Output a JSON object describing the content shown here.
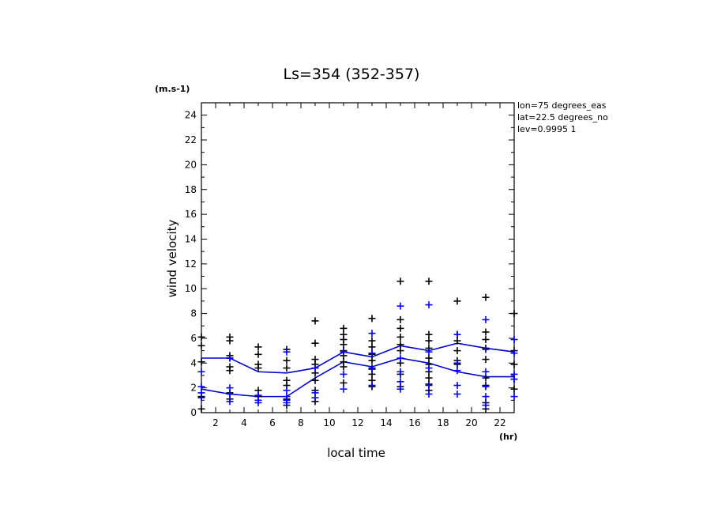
{
  "chart_data": {
    "type": "scatter",
    "title": "Ls=354 (352-357)",
    "xlabel": "local time",
    "ylabel": "wind velocity",
    "x_unit": "(hr)",
    "y_unit": "(m.s-1)",
    "xlim": [
      1,
      23
    ],
    "ylim": [
      0,
      25
    ],
    "x_ticks": [
      2,
      4,
      6,
      8,
      10,
      12,
      14,
      16,
      18,
      20,
      22
    ],
    "y_ticks": [
      0,
      2,
      4,
      6,
      8,
      10,
      12,
      14,
      16,
      18,
      20,
      22,
      24
    ],
    "grid": false,
    "info_lines": [
      "lon=75 degrees_eas",
      "lat=22.5 degrees_no",
      "lev=0.9995 1"
    ],
    "colors": {
      "black_points": "#000000",
      "blue_points": "#0000ff",
      "lines": "#0000cc"
    },
    "series": [
      {
        "marker": "plus",
        "color": "#000000",
        "points": [
          [
            1,
            0.3
          ],
          [
            1,
            1.3
          ],
          [
            1,
            4.1
          ],
          [
            1,
            5.4
          ],
          [
            1,
            6.1
          ],
          [
            3,
            1.1
          ],
          [
            3,
            1.6
          ],
          [
            3,
            3.4
          ],
          [
            3,
            3.7
          ],
          [
            3,
            4.4
          ],
          [
            3,
            4.6
          ],
          [
            3,
            5.8
          ],
          [
            3,
            6.1
          ],
          [
            5,
            1.3
          ],
          [
            5,
            1.8
          ],
          [
            5,
            3.6
          ],
          [
            5,
            3.9
          ],
          [
            5,
            4.7
          ],
          [
            5,
            5.3
          ],
          [
            7,
            0.6
          ],
          [
            7,
            1.1
          ],
          [
            7,
            2.2
          ],
          [
            7,
            2.6
          ],
          [
            7,
            3.6
          ],
          [
            7,
            4.2
          ],
          [
            7,
            5.1
          ],
          [
            9,
            0.9
          ],
          [
            9,
            1.8
          ],
          [
            9,
            2.6
          ],
          [
            9,
            3.2
          ],
          [
            9,
            3.9
          ],
          [
            9,
            4.3
          ],
          [
            9,
            5.6
          ],
          [
            9,
            7.4
          ],
          [
            11,
            2.4
          ],
          [
            11,
            3.7
          ],
          [
            11,
            4.1
          ],
          [
            11,
            4.6
          ],
          [
            11,
            5.0
          ],
          [
            11,
            5.5
          ],
          [
            11,
            5.9
          ],
          [
            11,
            6.3
          ],
          [
            11,
            6.8
          ],
          [
            13,
            2.1
          ],
          [
            13,
            2.6
          ],
          [
            13,
            3.1
          ],
          [
            13,
            3.6
          ],
          [
            13,
            4.2
          ],
          [
            13,
            4.7
          ],
          [
            13,
            5.3
          ],
          [
            13,
            5.8
          ],
          [
            13,
            7.6
          ],
          [
            15,
            2.1
          ],
          [
            15,
            3.1
          ],
          [
            15,
            4.0
          ],
          [
            15,
            5.0
          ],
          [
            15,
            5.5
          ],
          [
            15,
            6.1
          ],
          [
            15,
            6.8
          ],
          [
            15,
            7.5
          ],
          [
            15,
            10.6
          ],
          [
            17,
            1.8
          ],
          [
            17,
            2.3
          ],
          [
            17,
            2.8
          ],
          [
            17,
            3.3
          ],
          [
            17,
            3.9
          ],
          [
            17,
            4.4
          ],
          [
            17,
            5.2
          ],
          [
            17,
            5.8
          ],
          [
            17,
            6.3
          ],
          [
            17,
            10.6
          ],
          [
            19,
            3.9
          ],
          [
            19,
            4.2
          ],
          [
            19,
            5.0
          ],
          [
            19,
            5.8
          ],
          [
            19,
            6.3
          ],
          [
            19,
            9.0
          ],
          [
            21,
            0.3
          ],
          [
            21,
            0.8
          ],
          [
            21,
            2.2
          ],
          [
            21,
            2.8
          ],
          [
            21,
            4.3
          ],
          [
            21,
            5.2
          ],
          [
            21,
            5.9
          ],
          [
            21,
            6.5
          ],
          [
            21,
            9.3
          ],
          [
            23,
            1.9
          ],
          [
            23,
            2.7
          ],
          [
            23,
            3.9
          ],
          [
            23,
            5.0
          ],
          [
            23,
            8.0
          ]
        ]
      },
      {
        "marker": "plus",
        "color": "#0000ff",
        "points": [
          [
            1,
            1.2
          ],
          [
            1,
            1.6
          ],
          [
            1,
            2.1
          ],
          [
            1,
            3.3
          ],
          [
            3,
            0.9
          ],
          [
            3,
            1.5
          ],
          [
            3,
            2.0
          ],
          [
            3,
            4.4
          ],
          [
            5,
            0.8
          ],
          [
            5,
            1.0
          ],
          [
            5,
            1.4
          ],
          [
            7,
            0.8
          ],
          [
            7,
            1.0
          ],
          [
            7,
            1.3
          ],
          [
            7,
            1.8
          ],
          [
            7,
            4.9
          ],
          [
            9,
            1.2
          ],
          [
            9,
            1.6
          ],
          [
            9,
            3.6
          ],
          [
            11,
            1.9
          ],
          [
            11,
            3.1
          ],
          [
            11,
            4.9
          ],
          [
            13,
            2.2
          ],
          [
            13,
            3.5
          ],
          [
            13,
            4.8
          ],
          [
            13,
            6.4
          ],
          [
            15,
            1.9
          ],
          [
            15,
            2.5
          ],
          [
            15,
            3.3
          ],
          [
            15,
            4.4
          ],
          [
            15,
            8.6
          ],
          [
            17,
            1.5
          ],
          [
            17,
            2.2
          ],
          [
            17,
            3.6
          ],
          [
            17,
            4.9
          ],
          [
            17,
            8.7
          ],
          [
            19,
            1.5
          ],
          [
            19,
            2.2
          ],
          [
            19,
            3.4
          ],
          [
            19,
            4.0
          ],
          [
            19,
            6.3
          ],
          [
            21,
            0.6
          ],
          [
            21,
            1.3
          ],
          [
            21,
            2.1
          ],
          [
            21,
            3.3
          ],
          [
            21,
            5.1
          ],
          [
            21,
            7.5
          ],
          [
            23,
            1.3
          ],
          [
            23,
            2.7
          ],
          [
            23,
            3.1
          ],
          [
            23,
            4.8
          ],
          [
            23,
            5.9
          ]
        ]
      },
      {
        "type": "line",
        "color": "#0000cc",
        "x": [
          1,
          3,
          5,
          7,
          9,
          11,
          13,
          15,
          17,
          19,
          21,
          23
        ],
        "values": [
          4.4,
          4.4,
          3.3,
          3.2,
          3.6,
          4.9,
          4.5,
          5.4,
          5.0,
          5.6,
          5.2,
          4.9
        ]
      },
      {
        "type": "line",
        "color": "#0000cc",
        "x": [
          1,
          3,
          5,
          7,
          9,
          11,
          13,
          15,
          17,
          19,
          21,
          23
        ],
        "values": [
          1.9,
          1.5,
          1.3,
          1.3,
          2.8,
          4.1,
          3.7,
          4.4,
          4.0,
          3.3,
          2.9,
          2.9
        ]
      }
    ]
  }
}
